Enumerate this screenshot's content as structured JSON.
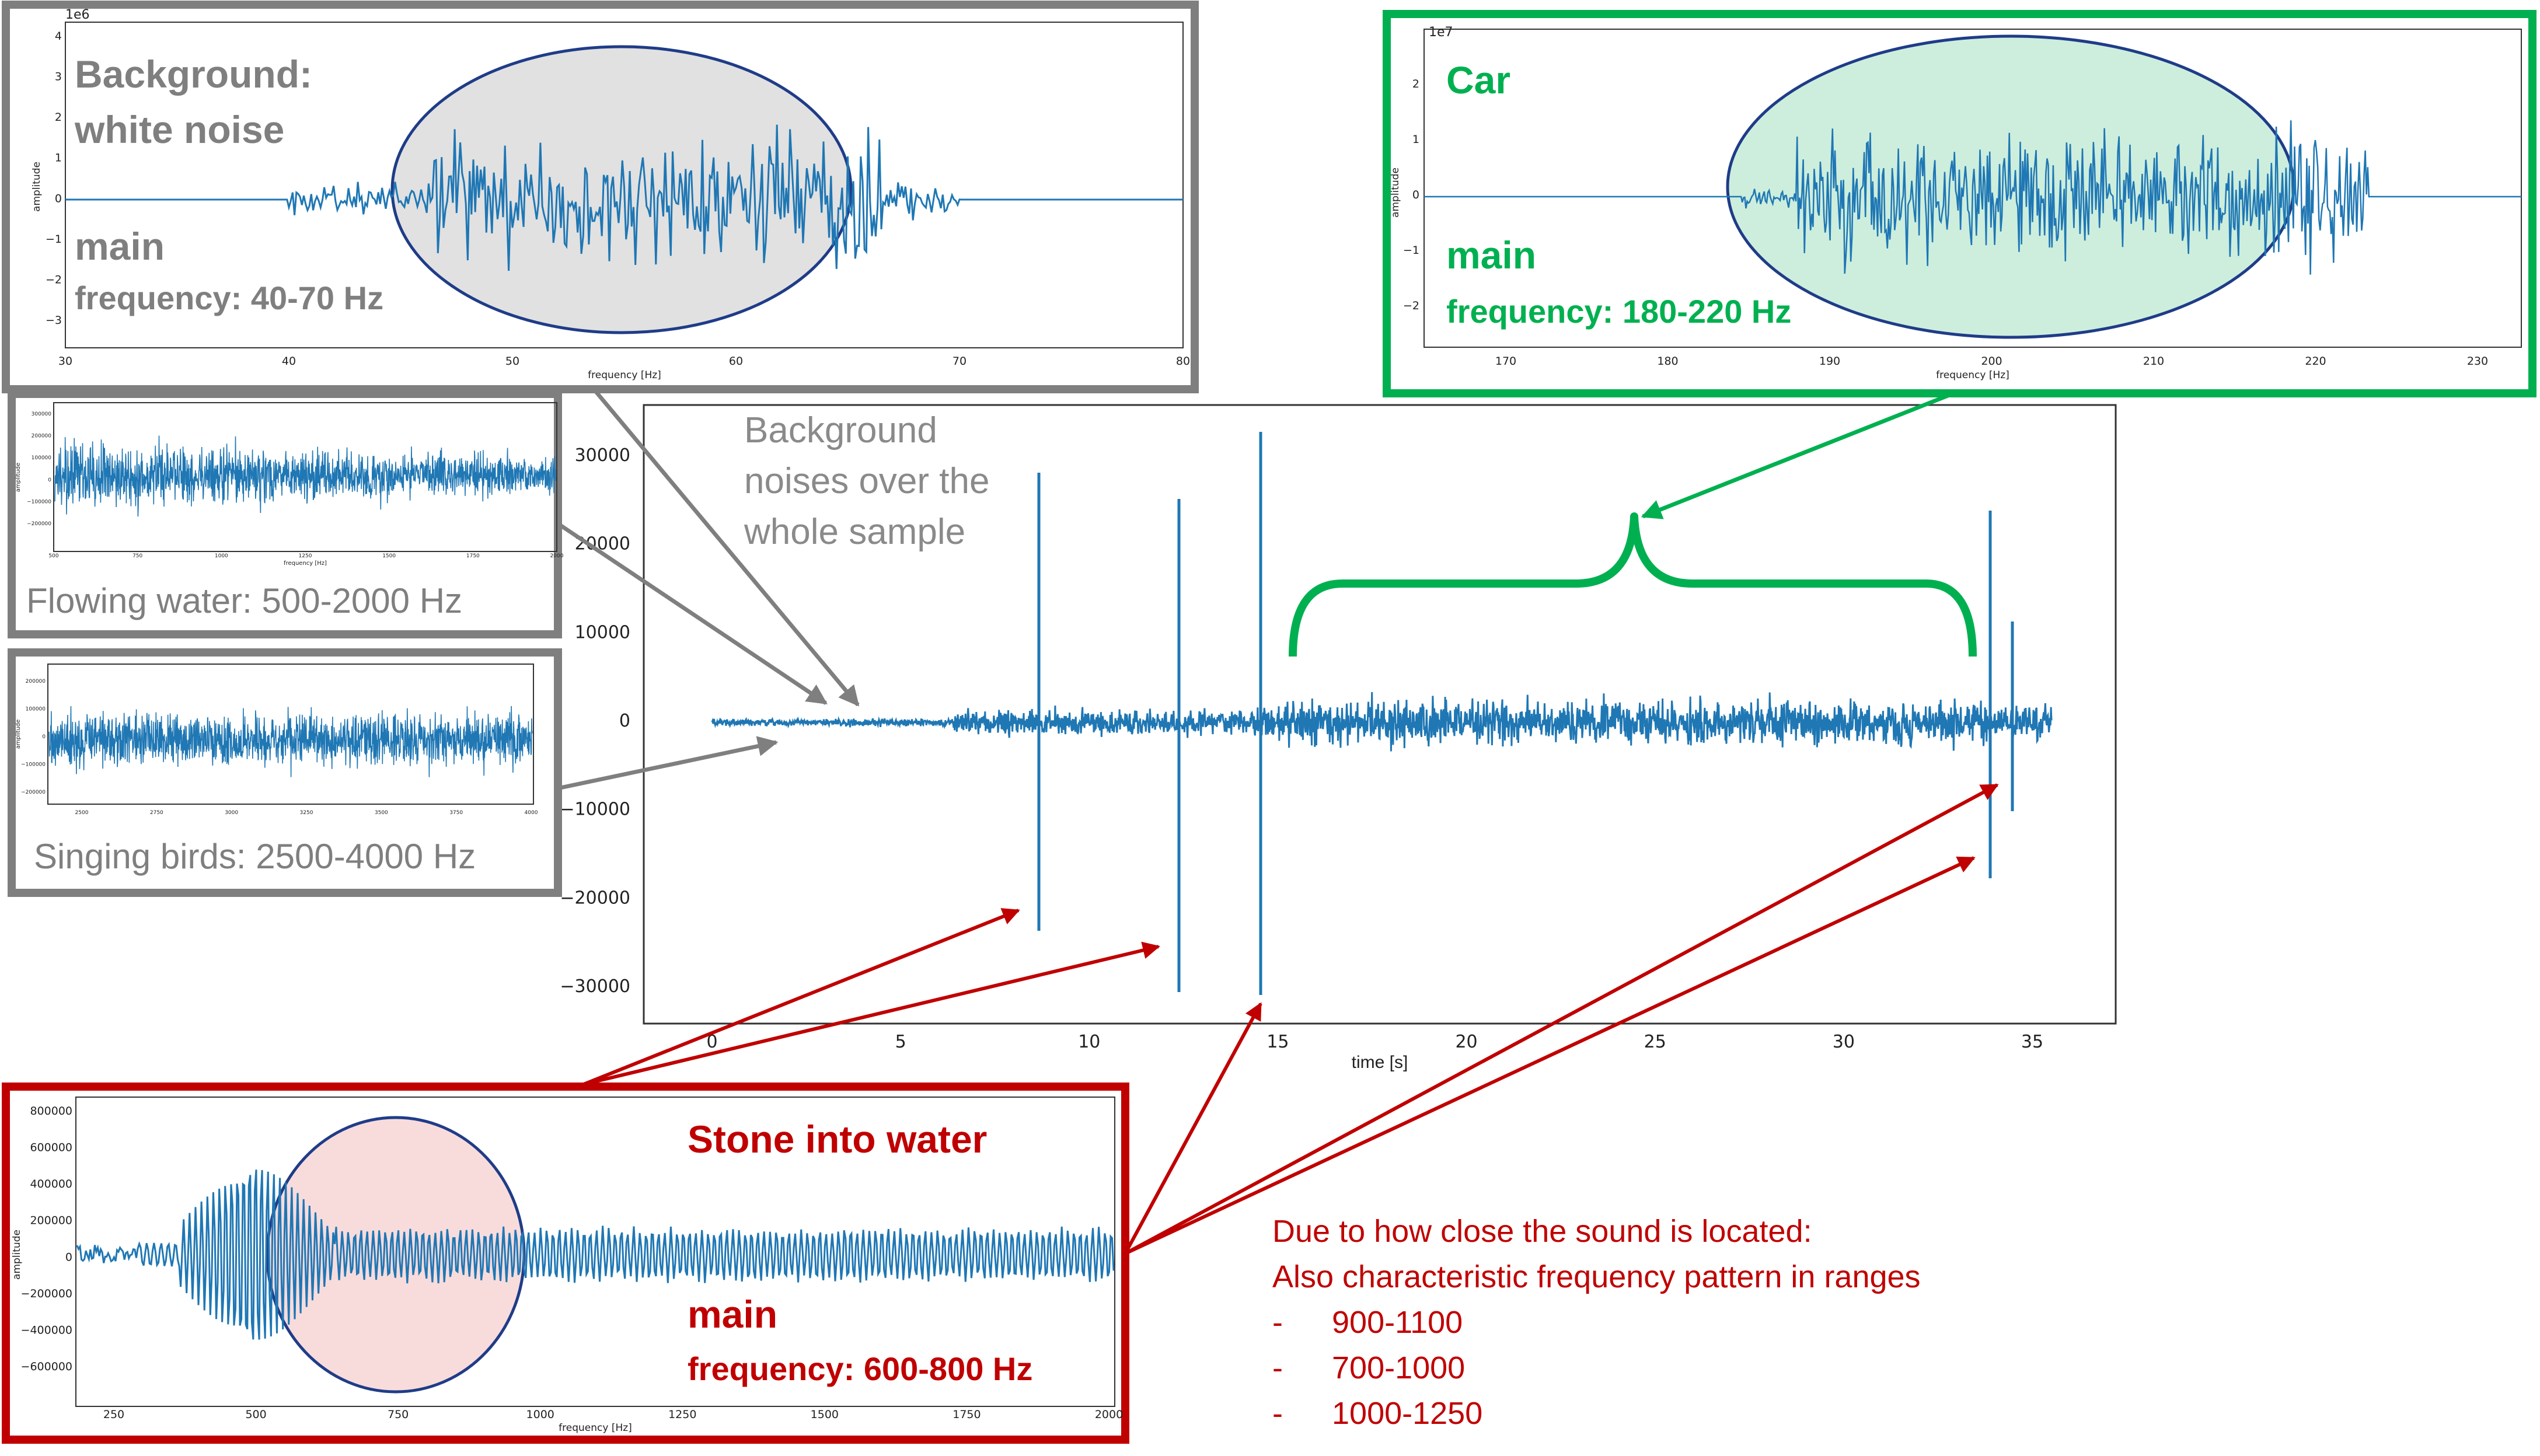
{
  "colors": {
    "signal": "#1f77b4",
    "gray": "#7f7f7f",
    "green": "#00b050",
    "green_fill": "#cdeedd",
    "red": "#c00000",
    "pink_fill": "#f8dcdc",
    "ellipse_stroke": "#1f3c88",
    "gray_fill": "#e1e1e1"
  },
  "main_chart": {
    "xlabel": "time [s]",
    "ylabel": "amplitude",
    "x_ticks": [
      "0",
      "5",
      "10",
      "15",
      "20",
      "25",
      "30",
      "35"
    ],
    "y_ticks": [
      "30000",
      "20000",
      "10000",
      "0",
      "−10000",
      "−20000",
      "−30000"
    ],
    "annotation": [
      "Background",
      "noises over the",
      "whole sample"
    ]
  },
  "white_noise_panel": {
    "title_lines": [
      "Background:",
      "white noise"
    ],
    "main_label": "main",
    "freq_label": "frequency: 40-70 Hz",
    "scale": "1e6",
    "xlabel": "frequency [Hz]",
    "ylabel": "amplitude",
    "x_ticks": [
      "30",
      "40",
      "50",
      "60",
      "70",
      "80"
    ],
    "y_ticks": [
      "4",
      "3",
      "2",
      "1",
      "0",
      "−1",
      "−2",
      "−3"
    ]
  },
  "car_panel": {
    "title": "Car",
    "main_label": "main",
    "freq_label": "frequency: 180-220 Hz",
    "scale": "1e7",
    "xlabel": "frequency [Hz]",
    "ylabel": "amplitude",
    "x_ticks": [
      "170",
      "180",
      "190",
      "200",
      "210",
      "220",
      "230"
    ],
    "y_ticks": [
      "2",
      "1",
      "0",
      "−1",
      "−2"
    ]
  },
  "water_panel": {
    "caption": "Flowing water: 500-2000 Hz",
    "xlabel": "frequency [Hz]",
    "ylabel": "amplitude",
    "x_ticks": [
      "500",
      "750",
      "1000",
      "1250",
      "1500",
      "1750",
      "2000"
    ],
    "y_ticks": [
      "300000",
      "200000",
      "100000",
      "0",
      "−100000",
      "−200000"
    ]
  },
  "birds_panel": {
    "caption": "Singing birds: 2500-4000 Hz",
    "ylabel": "amplitude",
    "x_ticks": [
      "2500",
      "2750",
      "3000",
      "3250",
      "3500",
      "3750",
      "4000"
    ],
    "y_ticks": [
      "200000",
      "100000",
      "0",
      "−100000",
      "−200000"
    ]
  },
  "stone_panel": {
    "title": "Stone into water",
    "main_label": "main",
    "freq_label": "frequency: 600-800 Hz",
    "xlabel": "frequency [Hz]",
    "ylabel": "amplitude",
    "x_ticks": [
      "250",
      "500",
      "750",
      "1000",
      "1250",
      "1500",
      "1750",
      "2000"
    ],
    "y_ticks": [
      "800000",
      "600000",
      "400000",
      "200000",
      "0",
      "−200000",
      "−400000",
      "−600000"
    ]
  },
  "note": {
    "lines": [
      "Due to how close the sound is located:",
      "Also characteristic frequency pattern in ranges"
    ],
    "bullets": [
      "900-1100",
      "700-1000",
      "1000-1250"
    ],
    "dash": "-"
  }
}
